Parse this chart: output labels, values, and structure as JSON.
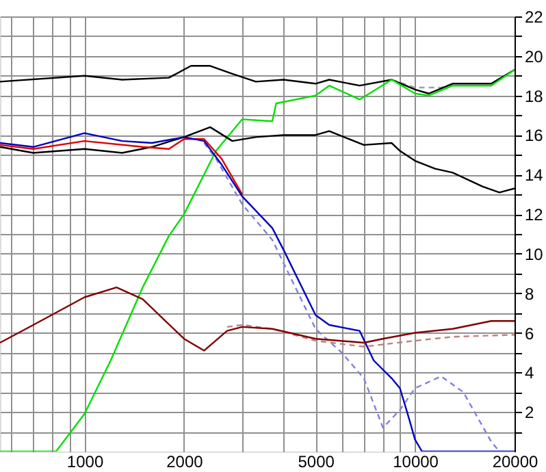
{
  "chart_data": {
    "type": "line",
    "log": "x",
    "grid": true,
    "legend": false,
    "line_style": "solid",
    "xlim": [
      555,
      20000
    ],
    "ylim": [
      0,
      22
    ],
    "xticks": [
      {
        "value": 600,
        "label": null
      },
      {
        "value": 700,
        "label": null
      },
      {
        "value": 800,
        "label": null
      },
      {
        "value": 900,
        "label": null
      },
      1000,
      {
        "value": 2000,
        "label": "2000"
      },
      {
        "value": 3000,
        "label": null
      },
      {
        "value": 4000,
        "label": null
      },
      5000,
      {
        "value": 6000,
        "label": null
      },
      {
        "value": 7000,
        "label": null
      },
      {
        "value": 8000,
        "label": null
      },
      {
        "value": 9000,
        "label": null
      },
      10000,
      20000
    ],
    "yticks": [
      {
        "value": 1,
        "label": null
      },
      2,
      {
        "value": 3,
        "label": null
      },
      4,
      {
        "value": 5,
        "label": null
      },
      6,
      {
        "value": 7,
        "label": null
      },
      8,
      {
        "value": 9,
        "label": null
      },
      10,
      {
        "value": 11,
        "label": null
      },
      12,
      {
        "value": 13,
        "label": null
      },
      14,
      {
        "value": 15,
        "label": null
      },
      16,
      {
        "value": 17,
        "label": null
      },
      18,
      {
        "value": 19,
        "label": null
      },
      20,
      {
        "value": 21,
        "label": null
      },
      22
    ],
    "series": [
      {
        "color": "#a0a0a0",
        "line_style": "dashed",
        "x": [
          8500,
          10000,
          12000,
          13000
        ],
        "values": [
          18.8,
          18.4,
          18.4,
          18.6
        ]
      },
      {
        "color": "#000000",
        "x": [
          555,
          1000,
          1300,
          1800,
          2100,
          2400,
          2800,
          3300,
          4000,
          5000,
          5500,
          6800,
          8500,
          10000,
          11000,
          13000,
          16000,
          17000,
          20000
        ],
        "values": [
          18.7,
          19.0,
          18.8,
          18.9,
          19.5,
          19.5,
          19.1,
          18.7,
          18.8,
          18.6,
          18.8,
          18.5,
          18.8,
          18.3,
          18.1,
          18.6,
          18.6,
          18.6,
          19.3
        ]
      },
      {
        "color": "#00e000",
        "x": [
          555,
          820,
          1000,
          1200,
          1500,
          1800,
          2000,
          2500,
          3000,
          3700,
          3800,
          5000,
          5500,
          6800,
          8500,
          10000,
          11000,
          13000,
          17000,
          20000
        ],
        "values": [
          0,
          0,
          1.9,
          4.6,
          8.3,
          10.9,
          12.0,
          15.2,
          16.8,
          16.7,
          17.6,
          18.0,
          18.5,
          17.8,
          18.8,
          18.1,
          18.0,
          18.5,
          18.5,
          19.3
        ]
      },
      {
        "color": "#000000",
        "x": [
          555,
          700,
          1000,
          1300,
          1600,
          2000,
          2400,
          2800,
          3300,
          4000,
          5000,
          5500,
          7000,
          8500,
          9000,
          10000,
          11500,
          13000,
          16000,
          18000,
          20000
        ],
        "values": [
          15.4,
          15.1,
          15.3,
          15.1,
          15.4,
          15.9,
          16.4,
          15.7,
          15.9,
          16.0,
          16.0,
          16.2,
          15.5,
          15.6,
          15.2,
          14.7,
          14.3,
          14.1,
          13.4,
          13.1,
          13.3
        ]
      },
      {
        "color": "#8080e0",
        "line_style": "dashed",
        "x": [
          2300,
          2500,
          3000,
          3700,
          5000,
          6000,
          7000,
          8000,
          9000,
          10000,
          12000,
          14000,
          17000,
          18000
        ],
        "values": [
          15.6,
          14.8,
          12.5,
          10.7,
          6.2,
          5.0,
          3.7,
          1.2,
          2.1,
          3.2,
          3.8,
          3.0,
          0.5,
          0
        ]
      },
      {
        "color": "#e00000",
        "x": [
          555,
          700,
          1000,
          1500,
          1800,
          2000,
          2300,
          2600,
          3000
        ],
        "values": [
          15.5,
          15.3,
          15.7,
          15.4,
          15.3,
          15.8,
          15.8,
          14.8,
          13.0
        ]
      },
      {
        "color": "#0000c0",
        "x": [
          555,
          700,
          1000,
          1300,
          1600,
          2000,
          2300,
          2600,
          3000,
          3700,
          4000,
          5000,
          5500,
          6800,
          7500,
          8500,
          9000,
          9500,
          10000,
          10500,
          20000
        ],
        "values": [
          15.6,
          15.4,
          16.1,
          15.7,
          15.6,
          15.9,
          15.7,
          14.5,
          12.9,
          11.3,
          10.2,
          6.9,
          6.4,
          6.1,
          4.6,
          3.7,
          3.2,
          1.9,
          0.6,
          0,
          0
        ]
      },
      {
        "color": "#c08080",
        "line_style": "dashed",
        "x": [
          2700,
          3000,
          3700,
          5000,
          7000,
          10000,
          13000,
          20000
        ],
        "values": [
          6.3,
          6.4,
          6.2,
          5.6,
          5.3,
          5.6,
          5.8,
          5.9
        ]
      },
      {
        "color": "#800000",
        "x": [
          555,
          700,
          1000,
          1250,
          1500,
          2000,
          2300,
          2700,
          3000,
          3700,
          5000,
          7000,
          8000,
          10000,
          13000,
          17000,
          20000
        ],
        "values": [
          5.5,
          6.4,
          7.8,
          8.3,
          7.7,
          5.7,
          5.1,
          6.1,
          6.3,
          6.2,
          5.7,
          5.5,
          5.7,
          6.0,
          6.2,
          6.6,
          6.6
        ]
      }
    ]
  }
}
